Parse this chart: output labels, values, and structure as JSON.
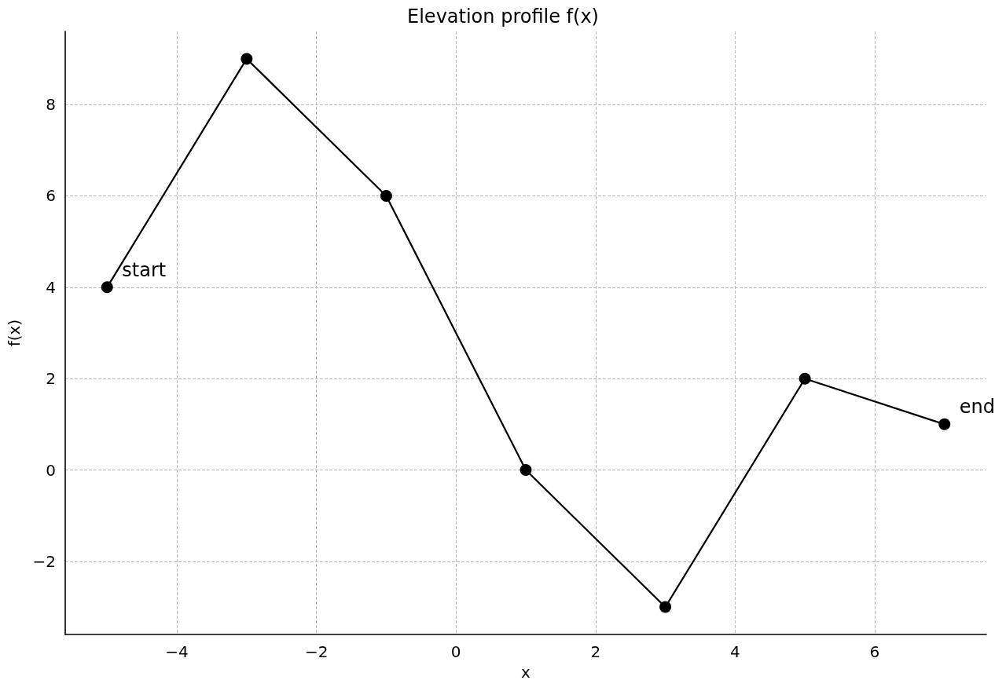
{
  "chart_data": {
    "type": "line",
    "title": "Elevation profile f(x)",
    "xlabel": "x",
    "ylabel": "f(x)",
    "x": [
      -5,
      -3,
      -1,
      1,
      3,
      5,
      7
    ],
    "series": [
      {
        "color": "#000000",
        "values": [
          4,
          9,
          6,
          0,
          -3,
          2,
          1
        ]
      }
    ],
    "xlim": [
      -5.6,
      7.6
    ],
    "ylim": [
      -3.6,
      9.6
    ],
    "xticks": [
      {
        "value": -4,
        "label": "−4"
      },
      {
        "value": -2,
        "label": "−2"
      },
      0,
      2,
      4,
      6
    ],
    "yticks": [
      {
        "value": -2,
        "label": "−2"
      },
      0,
      2,
      4,
      6,
      8
    ],
    "annotations": [
      {
        "text": "start",
        "x": -5,
        "y": 4
      },
      {
        "text": "end",
        "x": 7,
        "y": 1
      }
    ],
    "grid": true,
    "marker": "circle",
    "line_style": "solid"
  }
}
